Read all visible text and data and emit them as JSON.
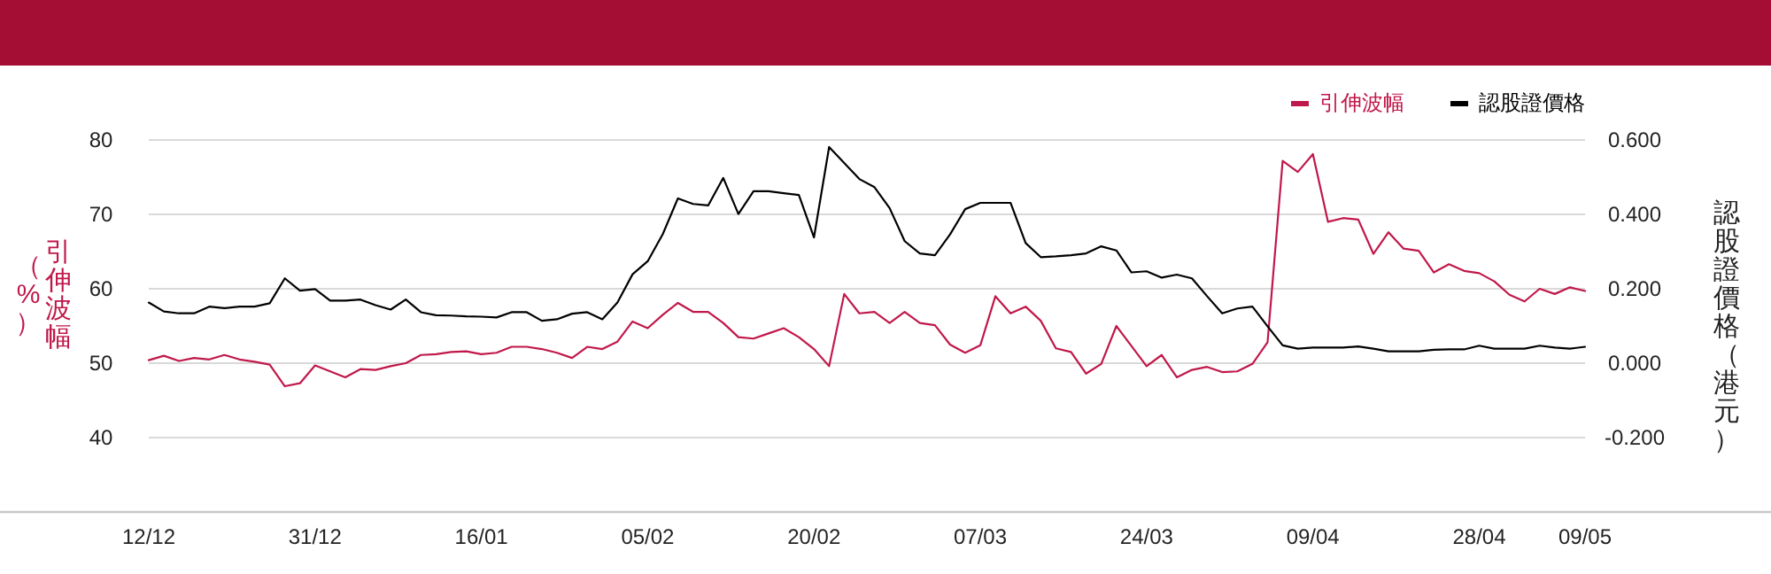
{
  "chart_data": {
    "type": "line",
    "ylabel": "引伸波幅（%）",
    "y2label": "認股證價格（港元）",
    "categories": [
      "12/12",
      null,
      null,
      null,
      null,
      null,
      null,
      null,
      null,
      null,
      null,
      "31/12",
      null,
      null,
      null,
      null,
      null,
      null,
      null,
      null,
      null,
      null,
      "16/01",
      null,
      null,
      null,
      null,
      null,
      null,
      null,
      null,
      null,
      null,
      "05/02",
      null,
      null,
      null,
      null,
      null,
      null,
      null,
      null,
      null,
      null,
      "20/02",
      null,
      null,
      null,
      null,
      null,
      null,
      null,
      null,
      null,
      null,
      "07/03",
      null,
      null,
      null,
      null,
      null,
      null,
      null,
      null,
      null,
      null,
      "24/03",
      null,
      null,
      null,
      null,
      null,
      null,
      null,
      null,
      null,
      null,
      "09/04",
      null,
      null,
      null,
      null,
      null,
      null,
      null,
      null,
      null,
      null,
      "28/04",
      null,
      null,
      null,
      null,
      null,
      null,
      "09/05"
    ],
    "series": [
      {
        "name": "引伸波幅",
        "color": "#c0184a",
        "values": [
          50.4,
          51.0,
          50.3,
          50.7,
          50.5,
          51.1,
          50.5,
          50.2,
          49.8,
          46.9,
          47.3,
          49.7,
          48.9,
          48.1,
          49.2,
          49.1,
          49.6,
          50.0,
          51.1,
          51.2,
          51.5,
          51.6,
          51.2,
          51.4,
          52.2,
          52.2,
          51.9,
          51.4,
          50.7,
          52.2,
          51.9,
          52.9,
          55.6,
          54.7,
          56.5,
          58.1,
          56.9,
          56.9,
          55.4,
          53.5,
          53.3,
          54.0,
          54.7,
          53.5,
          51.9,
          49.6,
          59.3,
          56.7,
          56.9,
          55.4,
          56.9,
          55.4,
          55.1,
          52.5,
          51.4,
          52.4,
          59.0,
          56.7,
          57.6,
          55.7,
          52.0,
          51.5,
          48.6,
          49.9,
          55.0,
          52.3,
          49.6,
          51.1,
          48.1,
          49.1,
          49.5,
          48.8,
          48.9,
          49.9,
          52.8,
          77.2,
          75.7,
          78.1,
          69.0,
          69.5,
          69.3,
          64.7,
          67.6,
          65.4,
          65.1,
          62.2,
          63.3,
          62.4,
          62.1,
          61.0,
          59.2,
          58.3,
          60.0,
          59.3,
          60.2,
          59.7
        ]
      },
      {
        "name": "認股證價格",
        "color": "#000000",
        "axis": "y2",
        "values": [
          0.163,
          0.139,
          0.134,
          0.134,
          0.152,
          0.148,
          0.152,
          0.152,
          0.161,
          0.228,
          0.195,
          0.199,
          0.168,
          0.168,
          0.171,
          0.156,
          0.144,
          0.171,
          0.137,
          0.129,
          0.128,
          0.126,
          0.125,
          0.123,
          0.137,
          0.137,
          0.114,
          0.118,
          0.133,
          0.137,
          0.118,
          0.163,
          0.239,
          0.274,
          0.347,
          0.443,
          0.428,
          0.424,
          0.498,
          0.401,
          0.462,
          0.462,
          0.457,
          0.452,
          0.338,
          0.581,
          0.538,
          0.495,
          0.473,
          0.417,
          0.328,
          0.295,
          0.29,
          0.346,
          0.414,
          0.431,
          0.431,
          0.431,
          0.323,
          0.285,
          0.287,
          0.29,
          0.295,
          0.314,
          0.303,
          0.244,
          0.247,
          0.23,
          0.238,
          0.228,
          0.18,
          0.134,
          0.147,
          0.152,
          0.099,
          0.048,
          0.039,
          0.042,
          0.042,
          0.042,
          0.045,
          0.039,
          0.032,
          0.032,
          0.032,
          0.036,
          0.037,
          0.037,
          0.047,
          0.039,
          0.039,
          0.039,
          0.047,
          0.042,
          0.039,
          0.044
        ]
      }
    ],
    "ylim": [
      30,
      80
    ],
    "yticks": [
      40,
      50,
      60,
      70,
      80
    ],
    "y2lim": [
      -0.4,
      0.6
    ],
    "y2ticks": [
      {
        "value": -0.2,
        "label": "-0.200"
      },
      {
        "value": 0,
        "label": "0.000"
      },
      {
        "value": 0.2,
        "label": "0.200"
      },
      {
        "value": 0.4,
        "label": "0.400"
      },
      {
        "value": 0.6,
        "label": "0.600"
      }
    ],
    "grid": "y",
    "legend": "top right"
  }
}
